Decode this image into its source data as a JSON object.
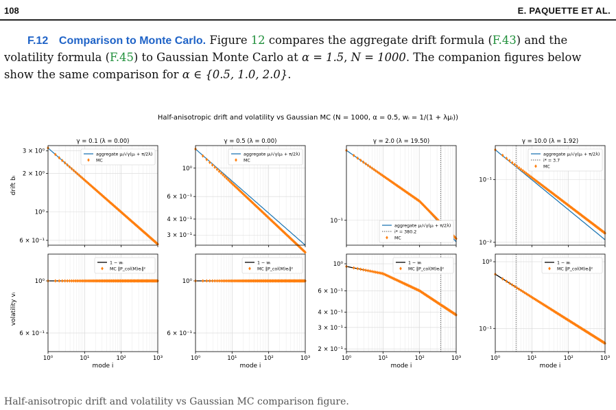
{
  "header": {
    "page_number": "108",
    "authors": "E. PAQUETTE ET AL."
  },
  "paragraph": {
    "section_number": "F.12",
    "section_title": "Comparison to Monte Carlo.",
    "t1": " Figure ",
    "fig_ref": "12",
    "t2": " compares the aggregate drift formula (",
    "drift_ref": "F.43",
    "t3": ") and the volatility formula (",
    "vol_ref": "F.45",
    "t4": ") to Gaussian Monte Carlo at ",
    "alpha_val": "α = 1.5",
    "t5": ", ",
    "n_val": "N = 1000",
    "t6": ". The companion figures below show the same comparison for ",
    "alpha_set": "α ∈ {0.5, 1.0, 2.0}",
    "t7": "."
  },
  "figure": {
    "suptitle": "Half-anisotropic drift and volatility vs Gaussian MC (N = 1000, α = 0.5, wᵢ = 1/(1 + λμᵢ))",
    "columns": [
      {
        "title": "γ = 0.1  (λ = 0.00)"
      },
      {
        "title": "γ = 0.5  (λ = 0.00)"
      },
      {
        "title": "γ = 2.0  (λ = 19.50)"
      },
      {
        "title": "γ = 10.0  (λ = 1.92)"
      }
    ],
    "ylabel_drift": "drift bᵢ",
    "ylabel_vol": "volatility vᵢ",
    "xlabel": "mode i",
    "colors": {
      "aggregate": "#1f77b4",
      "mc": "#ff7f0e",
      "one_minus_w": "#000000",
      "vline": "#555555"
    },
    "legend_drift": {
      "aggregate": "aggregate μᵢ/√γ(μᵢ + π/2λ)",
      "mc": "MC"
    },
    "legend_vol": {
      "line": "1 − wᵢ",
      "mc": "MC ‖P_col(M)eᵢ‖²"
    },
    "istar_panel3": "i* = 380.2",
    "istar_panel4": "i* = 3.7"
  },
  "chart_data": [
    {
      "type": "line",
      "title": "γ = 0.1  (λ = 0.00)",
      "ylabel": "drift bᵢ",
      "xscale": "log",
      "yscale": "log",
      "xlim": [
        1,
        1000
      ],
      "ylim": [
        0.55,
        3.3
      ],
      "yticks": [
        "3 × 10⁰",
        "2 × 10⁰",
        "10⁰",
        "6 × 10⁻¹"
      ],
      "series": [
        {
          "name": "aggregate μᵢ/√γ(μᵢ + π/2λ)",
          "points": [
            [
              1,
              3.16
            ],
            [
              1000,
              0.56
            ]
          ]
        },
        {
          "name": "MC",
          "points": [
            [
              1,
              3.16
            ],
            [
              1000,
              0.56
            ]
          ]
        }
      ]
    },
    {
      "type": "line",
      "title": "γ = 0.5  (λ = 0.00)",
      "xscale": "log",
      "yscale": "log",
      "xlim": [
        1,
        1000
      ],
      "ylim": [
        0.25,
        1.5
      ],
      "yticks": [
        "10⁰",
        "6 × 10⁻¹",
        "4 × 10⁻¹",
        "3 × 10⁻¹"
      ],
      "series": [
        {
          "name": "aggregate μᵢ/√γ(μᵢ + π/2λ)",
          "points": [
            [
              1,
              1.41
            ],
            [
              1000,
              0.25
            ]
          ]
        },
        {
          "name": "MC",
          "points": [
            [
              1,
              1.41
            ],
            [
              1000,
              0.22
            ]
          ]
        }
      ]
    },
    {
      "type": "line",
      "title": "γ = 2.0  (λ = 19.50)",
      "xscale": "log",
      "yscale": "log",
      "xlim": [
        1,
        1000
      ],
      "ylim": [
        0.05,
        0.8
      ],
      "yticks": [
        "10⁻¹"
      ],
      "series": [
        {
          "name": "aggregate μᵢ/√γ(μᵢ + π/2λ)",
          "points": [
            [
              1,
              0.7
            ],
            [
              100,
              0.17
            ],
            [
              1000,
              0.055
            ]
          ]
        },
        {
          "name": "MC",
          "points": [
            [
              1,
              0.7
            ],
            [
              100,
              0.17
            ],
            [
              1000,
              0.06
            ]
          ]
        }
      ],
      "vline": {
        "x": 380.2,
        "label": "i* = 380.2"
      }
    },
    {
      "type": "line",
      "title": "γ = 10.0  (λ = 1.92)",
      "xscale": "log",
      "yscale": "log",
      "xlim": [
        1,
        1000
      ],
      "ylim": [
        0.009,
        0.35
      ],
      "yticks": [
        "10⁻¹",
        "10⁻²"
      ],
      "series": [
        {
          "name": "aggregate μᵢ/√γ(μᵢ + π/2λ)",
          "points": [
            [
              1,
              0.3
            ],
            [
              1000,
              0.011
            ]
          ]
        },
        {
          "name": "MC",
          "points": [
            [
              1,
              0.3
            ],
            [
              1000,
              0.014
            ]
          ]
        }
      ],
      "vline": {
        "x": 3.7,
        "label": "i* = 3.7"
      }
    },
    {
      "type": "line",
      "ylabel": "volatility vᵢ",
      "xlabel": "mode i",
      "xscale": "log",
      "yscale": "log",
      "xlim": [
        1,
        1000
      ],
      "ylim": [
        0.5,
        1.3
      ],
      "yticks": [
        "10⁰",
        "6 × 10⁻¹"
      ],
      "series": [
        {
          "name": "1 − wᵢ",
          "points": [
            [
              1,
              1.0
            ],
            [
              1000,
              1.0
            ]
          ]
        },
        {
          "name": "MC ‖P_col(M)eᵢ‖²",
          "points": [
            [
              1,
              1.0
            ],
            [
              1000,
              1.0
            ]
          ]
        }
      ]
    },
    {
      "type": "line",
      "xlabel": "mode i",
      "xscale": "log",
      "yscale": "log",
      "xlim": [
        1,
        1000
      ],
      "ylim": [
        0.5,
        1.3
      ],
      "yticks": [
        "10⁰",
        "6 × 10⁻¹"
      ],
      "series": [
        {
          "name": "1 − wᵢ",
          "points": [
            [
              1,
              1.0
            ],
            [
              1000,
              1.0
            ]
          ]
        },
        {
          "name": "MC ‖P_col(M)eᵢ‖²",
          "points": [
            [
              1,
              1.0
            ],
            [
              1000,
              1.0
            ]
          ]
        }
      ]
    },
    {
      "type": "line",
      "xlabel": "mode i",
      "xscale": "log",
      "yscale": "log",
      "xlim": [
        1,
        1000
      ],
      "ylim": [
        0.19,
        1.2
      ],
      "yticks": [
        "10⁰",
        "6 × 10⁻¹",
        "4 × 10⁻¹",
        "3 × 10⁻¹",
        "2 × 10⁻¹"
      ],
      "series": [
        {
          "name": "1 − wᵢ",
          "points": [
            [
              1,
              0.95
            ],
            [
              10,
              0.83
            ],
            [
              100,
              0.6
            ],
            [
              1000,
              0.38
            ]
          ]
        },
        {
          "name": "MC ‖P_col(M)eᵢ‖²",
          "points": [
            [
              1,
              0.95
            ],
            [
              10,
              0.83
            ],
            [
              100,
              0.6
            ],
            [
              1000,
              0.38
            ]
          ]
        }
      ],
      "vline": {
        "x": 380.2
      }
    },
    {
      "type": "line",
      "xlabel": "mode i",
      "xscale": "log",
      "yscale": "log",
      "xlim": [
        1,
        1000
      ],
      "ylim": [
        0.045,
        1.3
      ],
      "yticks": [
        "10⁰",
        "10⁻¹"
      ],
      "series": [
        {
          "name": "1 − wᵢ",
          "points": [
            [
              1,
              0.65
            ],
            [
              1000,
              0.06
            ]
          ]
        },
        {
          "name": "MC ‖P_col(M)eᵢ‖²",
          "points": [
            [
              1,
              0.65
            ],
            [
              1000,
              0.06
            ]
          ]
        }
      ],
      "vline": {
        "x": 3.7
      }
    }
  ],
  "caption": "Half-anisotropic drift and volatility vs Gaussian MC comparison figure."
}
